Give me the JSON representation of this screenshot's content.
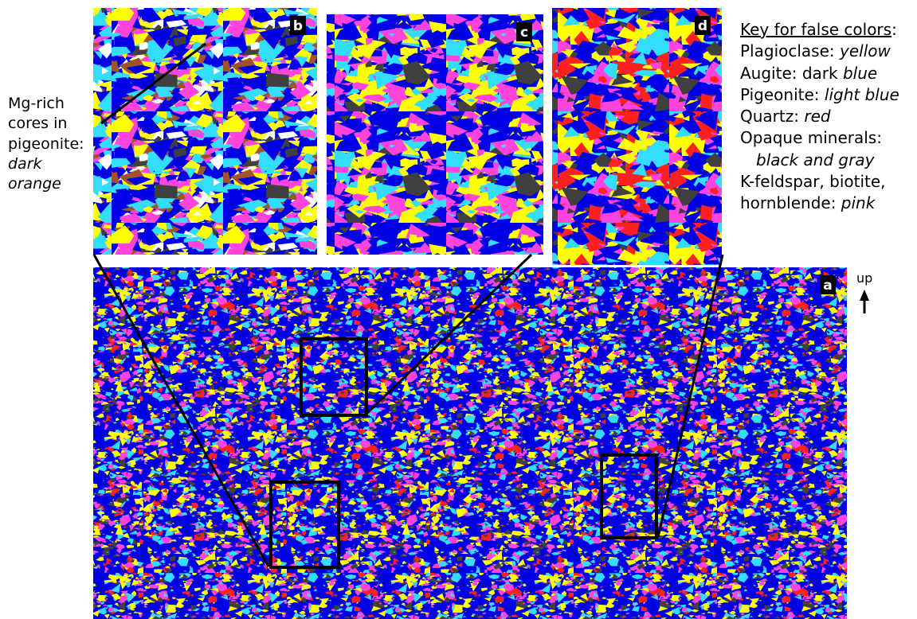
{
  "panels": {
    "b": "b",
    "c": "c",
    "d": "d",
    "a": "a"
  },
  "annotation": {
    "lines": [
      "Mg-rich",
      "cores in",
      "pigeonite:"
    ],
    "em_lines": [
      "dark",
      "orange"
    ]
  },
  "key": {
    "title": "Key for false colors",
    "title_suffix": ":",
    "items": [
      {
        "text": "Plagioclase: ",
        "em": "yellow"
      },
      {
        "text": "Augite: dark ",
        "em": "blue"
      },
      {
        "text": "Pigeonite: ",
        "em": "light blue"
      },
      {
        "text": "Quartz: ",
        "em": "red"
      },
      {
        "text": "Opaque minerals:"
      },
      {
        "em": "black and gray"
      },
      {
        "text": "K-feldspar, biotite,"
      },
      {
        "text": "hornblende: ",
        "em": "pink"
      }
    ]
  },
  "orientation": "up"
}
